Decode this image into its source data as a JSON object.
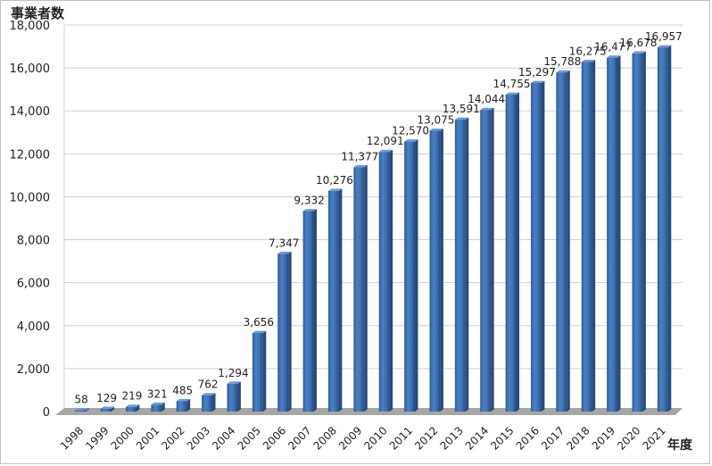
{
  "chart_data": {
    "type": "bar",
    "ylabel": "事業者数",
    "xlabel": "年度",
    "ylim": [
      0,
      18000
    ],
    "yticks": [
      0,
      2000,
      4000,
      6000,
      8000,
      10000,
      12000,
      14000,
      16000,
      18000
    ],
    "grid": true,
    "legend": "none",
    "categories": [
      "1998",
      "1999",
      "2000",
      "2001",
      "2002",
      "2003",
      "2004",
      "2005",
      "2006",
      "2007",
      "2008",
      "2009",
      "2010",
      "2011",
      "2012",
      "2013",
      "2014",
      "2015",
      "2016",
      "2017",
      "2018",
      "2019",
      "2020",
      "2021"
    ],
    "values": [
      58,
      129,
      219,
      321,
      485,
      762,
      1294,
      3656,
      7347,
      9332,
      10276,
      11377,
      12091,
      12570,
      13075,
      13591,
      14044,
      14755,
      15297,
      15788,
      16275,
      16477,
      16678,
      16957
    ],
    "bar_color": "#3d6fb4"
  }
}
